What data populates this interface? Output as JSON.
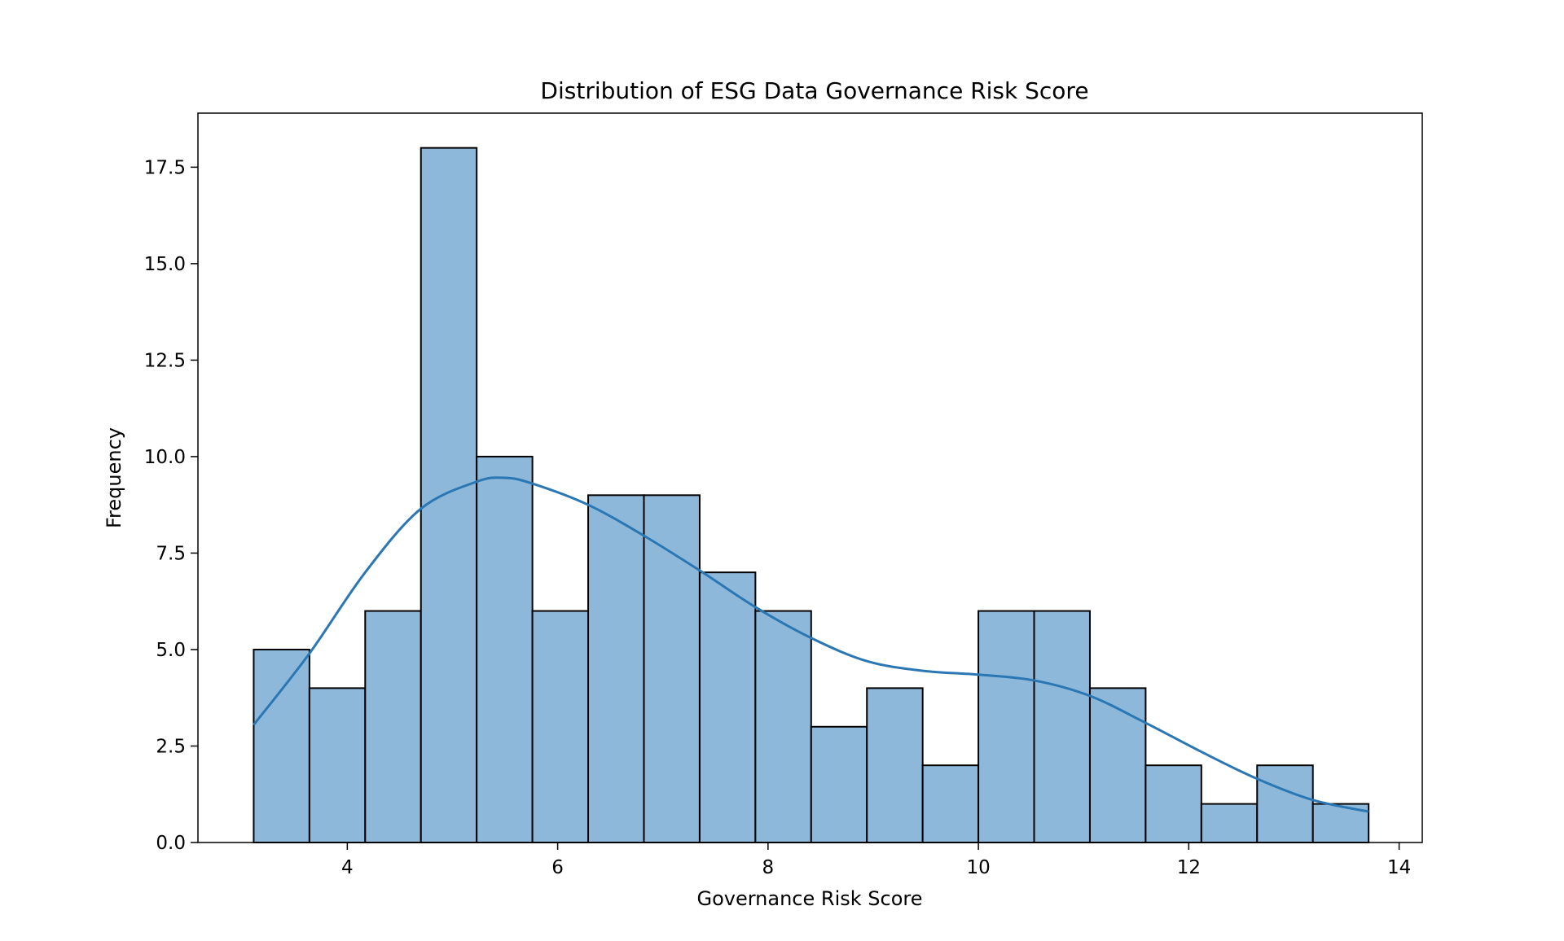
{
  "chart_data": {
    "type": "bar",
    "title": "Distribution of ESG Data Governance Risk Score",
    "xlabel": "Governance Risk Score",
    "ylabel": "Frequency",
    "xlim": [
      2.58,
      14.22
    ],
    "ylim": [
      0,
      18.9
    ],
    "xticks": [
      4,
      6,
      8,
      10,
      12,
      14
    ],
    "xtick_labels": [
      "4",
      "6",
      "8",
      "10",
      "12",
      "14"
    ],
    "yticks": [
      0,
      2.5,
      5,
      7.5,
      10,
      12.5,
      15,
      17.5
    ],
    "ytick_labels": [
      "0.0",
      "2.5",
      "5.0",
      "7.5",
      "10.0",
      "12.5",
      "15.0",
      "17.5"
    ],
    "bin_edges": [
      3.11,
      3.64,
      4.17,
      4.7,
      5.23,
      5.76,
      6.29,
      6.82,
      7.35,
      7.88,
      8.41,
      8.94,
      9.47,
      10.0,
      10.53,
      11.06,
      11.59,
      12.12,
      12.65,
      13.18,
      13.71
    ],
    "counts": [
      5,
      4,
      6,
      18,
      10,
      6,
      9,
      9,
      7,
      6,
      3,
      4,
      2,
      6,
      6,
      4,
      2,
      1,
      2,
      1
    ],
    "kde": {
      "x": [
        3.11,
        3.64,
        4.17,
        4.7,
        5.23,
        5.5,
        5.76,
        6.29,
        6.82,
        7.35,
        7.88,
        8.41,
        8.94,
        9.47,
        10.0,
        10.53,
        11.06,
        11.59,
        12.12,
        12.65,
        13.18,
        13.71
      ],
      "y": [
        3.05,
        4.9,
        7.0,
        8.65,
        9.35,
        9.45,
        9.3,
        8.75,
        7.95,
        7.05,
        6.1,
        5.3,
        4.7,
        4.45,
        4.35,
        4.2,
        3.8,
        3.1,
        2.35,
        1.65,
        1.1,
        0.8
      ]
    },
    "colors": {
      "bar_fill": "#8db8da",
      "bar_edge": "#000000",
      "kde_line": "#2a77b4"
    },
    "grid": false,
    "legend": "none"
  }
}
